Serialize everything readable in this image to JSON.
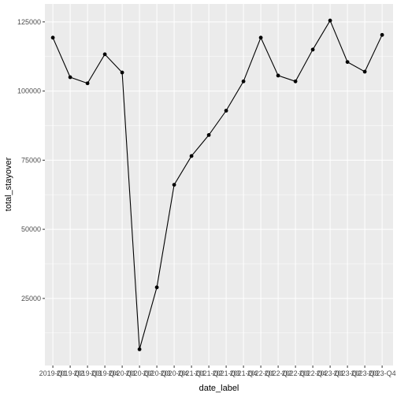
{
  "chart_data": {
    "type": "line",
    "xlabel": "date_label",
    "ylabel": "total_stayover",
    "x": [
      "2019-Q1",
      "2019-Q2",
      "2019-Q3",
      "2019-Q4",
      "2020-Q1",
      "2020-Q2",
      "2020-Q3",
      "2020-Q4",
      "2021-Q1",
      "2021-Q2",
      "2021-Q3",
      "2021-Q4",
      "2022-Q1",
      "2022-Q2",
      "2022-Q3",
      "2022-Q4",
      "2023-Q1",
      "2023-Q2",
      "2023-Q3",
      "2023-Q4"
    ],
    "series": [
      {
        "values": [
          119300,
          105000,
          102800,
          113300,
          106700,
          6600,
          29000,
          66100,
          76500,
          84100,
          92900,
          103500,
          119300,
          105600,
          103500,
          115000,
          125500,
          110500,
          107000,
          120300
        ]
      }
    ],
    "yticks": [
      25000,
      50000,
      75000,
      100000,
      125000
    ],
    "ytick_labels": [
      "25000",
      "50000",
      "75000",
      "100000",
      "125000"
    ],
    "ylim": [
      750,
      131500
    ],
    "grid": true,
    "colors": {
      "panel": "#ebebeb",
      "grid": "#ffffff",
      "line": "#000000"
    }
  }
}
